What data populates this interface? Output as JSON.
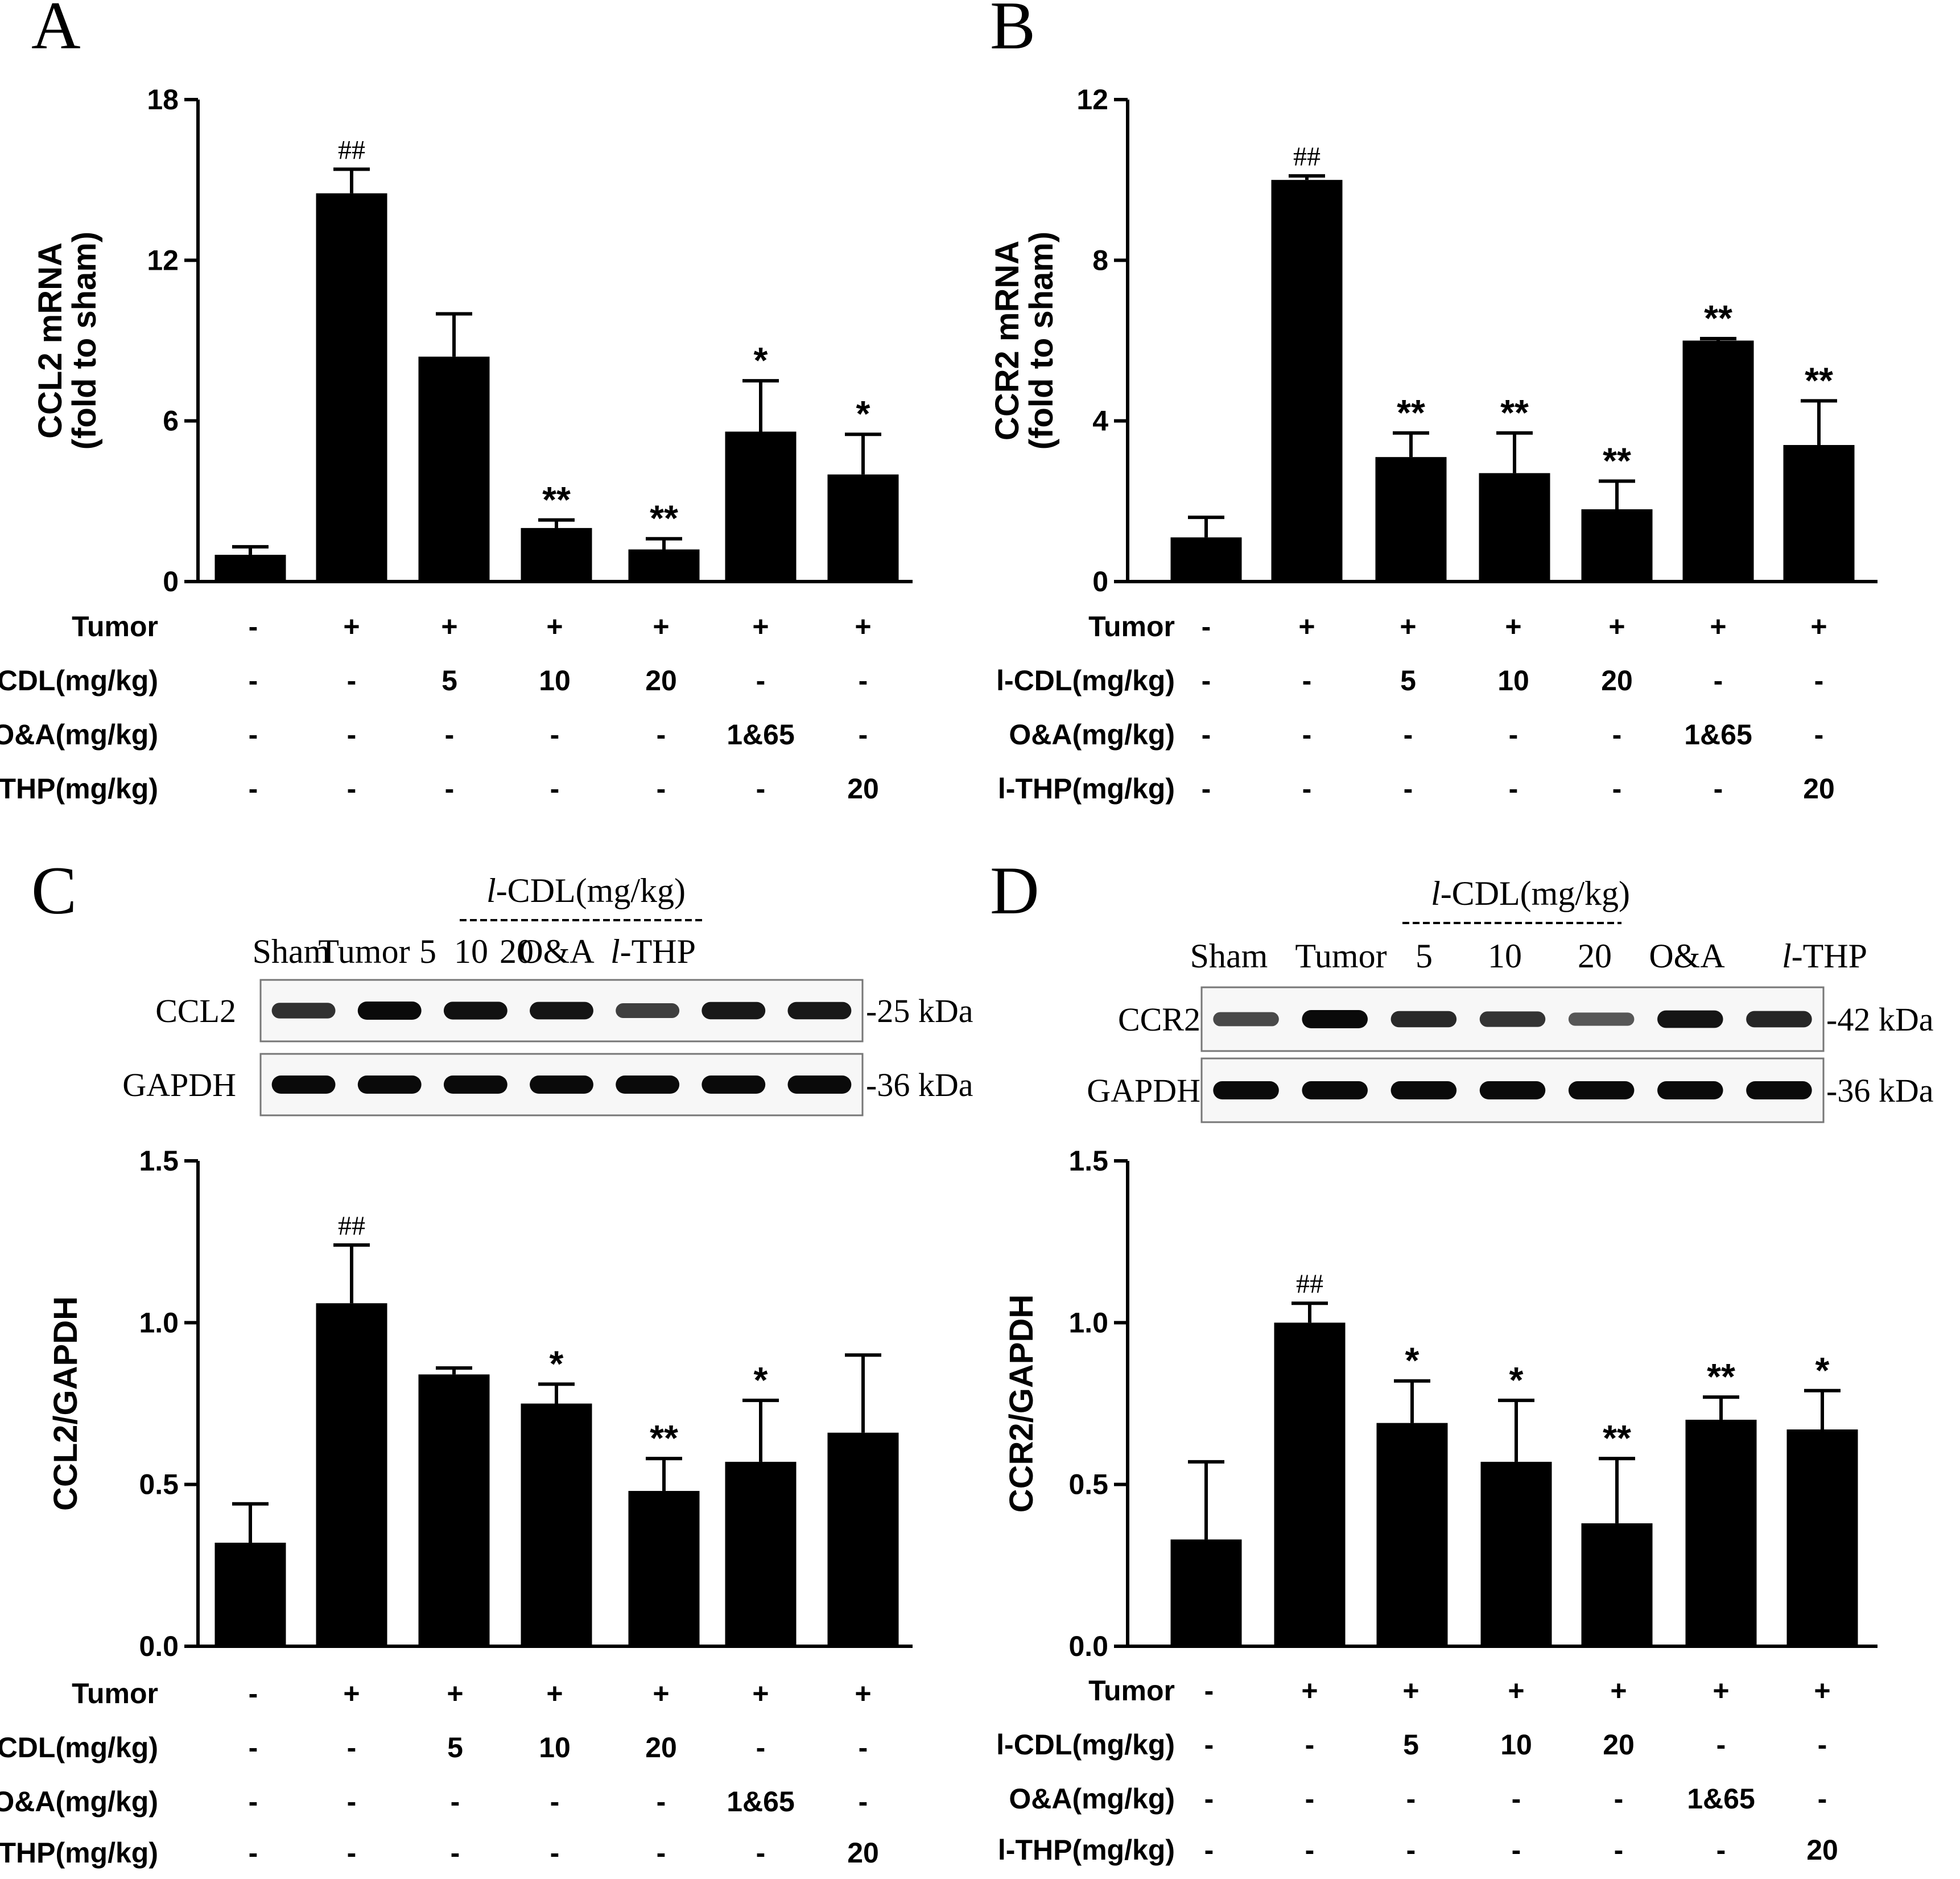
{
  "panels": [
    {
      "letter": "A",
      "chart_data": {
        "type": "bar",
        "ylabel": "CCL2 mRNA",
        "ylabel2": "(fold to sham)",
        "ylim": [
          0,
          18
        ],
        "ticks": [
          "0",
          "6",
          "12",
          "18"
        ],
        "tick_values": [
          0,
          6,
          12,
          18
        ],
        "values": [
          1.0,
          14.5,
          8.4,
          2.0,
          1.2,
          5.6,
          4.0
        ],
        "errors": [
          0.3,
          0.9,
          1.6,
          0.3,
          0.4,
          1.9,
          1.5
        ],
        "annotations": [
          "",
          "##",
          "",
          "**",
          "**",
          "*",
          "*"
        ]
      }
    },
    {
      "letter": "B",
      "chart_data": {
        "type": "bar",
        "ylabel": "CCR2 mRNA",
        "ylabel2": "(fold to sham)",
        "ylim": [
          0,
          12
        ],
        "ticks": [
          "0",
          "4",
          "8",
          "12"
        ],
        "tick_values": [
          0,
          4,
          8,
          12
        ],
        "values": [
          1.1,
          10.0,
          3.1,
          2.7,
          1.8,
          6.0,
          3.4
        ],
        "errors": [
          0.5,
          0.1,
          0.6,
          1.0,
          0.7,
          0.05,
          1.1
        ],
        "annotations": [
          "",
          "##",
          "**",
          "**",
          "**",
          "**",
          "**"
        ]
      }
    },
    {
      "letter": "C",
      "chart_data": {
        "type": "bar",
        "ylabel": "CCL2/GAPDH",
        "ylabel2": "",
        "ylim": [
          0,
          1.5
        ],
        "ticks": [
          "0.0",
          "0.5",
          "1.0",
          "1.5"
        ],
        "tick_values": [
          0,
          0.5,
          1.0,
          1.5
        ],
        "values": [
          0.32,
          1.06,
          0.84,
          0.75,
          0.48,
          0.57,
          0.66
        ],
        "errors": [
          0.12,
          0.18,
          0.02,
          0.06,
          0.1,
          0.19,
          0.24
        ],
        "annotations": [
          "",
          "##",
          "",
          "*",
          "**",
          "*",
          ""
        ]
      },
      "blot": {
        "group_label_prefix": "l",
        "group_label": "-CDL(mg/kg)",
        "lanes": [
          "Sham",
          "Tumor",
          "5",
          "10",
          "20",
          "O&A"
        ],
        "last_lane_prefix": "l",
        "last_lane": "-THP",
        "rows": [
          {
            "name": "CCL2",
            "kda": "-25 kDa",
            "intensity": [
              0.72,
              1.0,
              0.95,
              0.92,
              0.62,
              0.9,
              0.9
            ]
          },
          {
            "name": "GAPDH",
            "kda": "-36 kDa",
            "intensity": [
              1.0,
              1.0,
              1.0,
              1.0,
              1.0,
              1.0,
              1.0
            ]
          }
        ]
      }
    },
    {
      "letter": "D",
      "chart_data": {
        "type": "bar",
        "ylabel": "CCR2/GAPDH",
        "ylabel2": "",
        "ylim": [
          0,
          1.5
        ],
        "ticks": [
          "0.0",
          "0.5",
          "1.0",
          "1.5"
        ],
        "tick_values": [
          0,
          0.5,
          1.0,
          1.5
        ],
        "values": [
          0.33,
          1.0,
          0.69,
          0.57,
          0.38,
          0.7,
          0.67
        ],
        "errors": [
          0.24,
          0.06,
          0.13,
          0.19,
          0.2,
          0.07,
          0.12
        ],
        "annotations": [
          "",
          "##",
          "*",
          "*",
          "**",
          "**",
          "*"
        ]
      },
      "blot": {
        "group_label_prefix": "l",
        "group_label": "-CDL(mg/kg)",
        "lanes": [
          "Sham",
          "Tumor",
          "5",
          "10",
          "20",
          "O&A"
        ],
        "last_lane_prefix": "l",
        "last_lane": "-THP",
        "rows": [
          {
            "name": "CCR2",
            "kda": "-42 kDa",
            "intensity": [
              0.55,
              1.0,
              0.78,
              0.7,
              0.45,
              0.92,
              0.8
            ]
          },
          {
            "name": "GAPDH",
            "kda": "-36 kDa",
            "intensity": [
              1.0,
              1.0,
              1.0,
              1.0,
              1.0,
              1.0,
              1.0
            ]
          }
        ]
      }
    }
  ],
  "treatment_table": {
    "rows": [
      {
        "label": "Tumor",
        "values": [
          "-",
          "+",
          "+",
          "+",
          "+",
          "+",
          "+"
        ]
      },
      {
        "label": "l-CDL(mg/kg)",
        "values": [
          "-",
          "-",
          "5",
          "10",
          "20",
          "-",
          "-"
        ]
      },
      {
        "label": "O&A(mg/kg)",
        "values": [
          "-",
          "-",
          "-",
          "-",
          "-",
          "1&65",
          "-"
        ]
      },
      {
        "label": "l-THP(mg/kg)",
        "values": [
          "-",
          "-",
          "-",
          "-",
          "-",
          "-",
          "20"
        ]
      }
    ]
  }
}
